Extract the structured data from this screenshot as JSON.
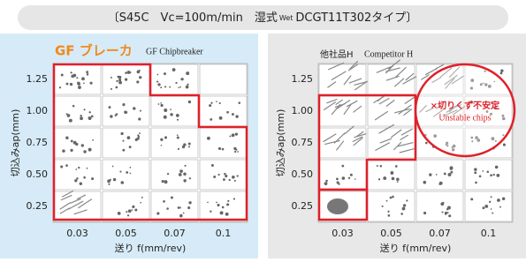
{
  "header": {
    "prefix": "〔S45C　Vc=100m/min　湿式",
    "wet": "Wet",
    "suffix": "DCGT11T302タイプ〕"
  },
  "panels": [
    {
      "title": "GF ブレーカ",
      "subtitle": "GF Chipbreaker",
      "y_axis": {
        "title": "切込みap(mm)",
        "ticks": [
          "1.25",
          "1.00",
          "0.75",
          "0.50",
          "0.25"
        ]
      },
      "x_axis": {
        "title": "送り f(mm/rev)",
        "ticks": [
          "0.03",
          "0.05",
          "0.07",
          "0.1"
        ]
      }
    },
    {
      "title": "他社品H",
      "subtitle": "Competitor H",
      "y_axis": {
        "title": "切込みap(mm)",
        "ticks": [
          "1.25",
          "1.00",
          "0.75",
          "0.50",
          "0.25"
        ]
      },
      "x_axis": {
        "title": "送り f(mm/rev)",
        "ticks": [
          "0.03",
          "0.05",
          "0.07",
          "0.1"
        ]
      },
      "annotation": {
        "text": "×切りくず不安定",
        "subtitle": "Unstable chips"
      }
    }
  ]
}
